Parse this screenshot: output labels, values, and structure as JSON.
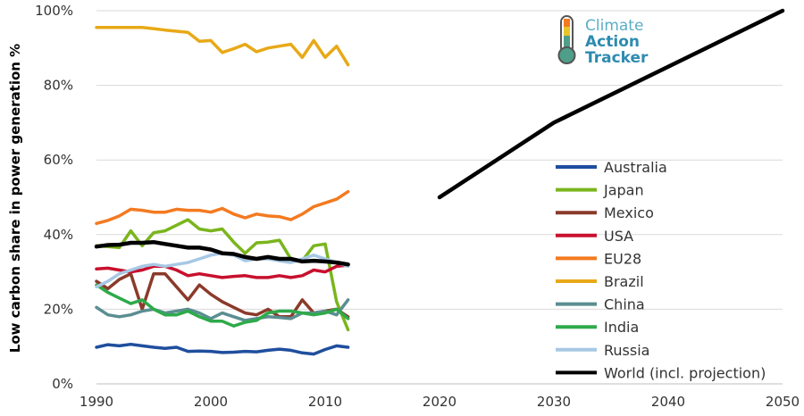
{
  "chart_data": {
    "type": "line",
    "title": "",
    "xlabel": "",
    "ylabel": "Low carbon share in power generation %",
    "xlim": [
      1990,
      2050
    ],
    "ylim": [
      0,
      100
    ],
    "x_ticks": [
      1990,
      2000,
      2010,
      2020,
      2030,
      2040,
      2050
    ],
    "x_tick_labels": [
      "1990",
      "2000",
      "2010",
      "2020",
      "2030",
      "2040",
      "2050"
    ],
    "y_ticks": [
      0,
      20,
      40,
      60,
      80,
      100
    ],
    "y_tick_labels": [
      "0%",
      "20%",
      "40%",
      "60%",
      "80%",
      "100%"
    ],
    "grid": "horizontal",
    "legend_position": "right",
    "logo": {
      "line1": "Climate",
      "line2": "Action",
      "line3": "Tracker"
    },
    "series": [
      {
        "name": "Australia",
        "color": "#1f4e9e",
        "x": [
          1990,
          1991,
          1992,
          1993,
          1994,
          1995,
          1996,
          1997,
          1998,
          1999,
          2000,
          2001,
          2002,
          2003,
          2004,
          2005,
          2006,
          2007,
          2008,
          2009,
          2010,
          2011,
          2012
        ],
        "y": [
          9.8,
          10.5,
          10.2,
          10.6,
          10.2,
          9.8,
          9.5,
          9.8,
          8.7,
          8.8,
          8.7,
          8.4,
          8.5,
          8.7,
          8.6,
          9.0,
          9.3,
          9.0,
          8.3,
          8.0,
          9.2,
          10.2,
          9.8
        ]
      },
      {
        "name": "Japan",
        "color": "#7ab51d",
        "x": [
          1990,
          1991,
          1992,
          1993,
          1994,
          1995,
          1996,
          1997,
          1998,
          1999,
          2000,
          2001,
          2002,
          2003,
          2004,
          2005,
          2006,
          2007,
          2008,
          2009,
          2010,
          2011,
          2012
        ],
        "y": [
          37.0,
          36.8,
          36.5,
          41.0,
          37.0,
          40.5,
          41.0,
          42.5,
          44.0,
          41.5,
          41.0,
          41.5,
          38.0,
          35.0,
          37.8,
          38.0,
          38.5,
          33.5,
          33.0,
          37.0,
          37.5,
          22.0,
          14.5
        ]
      },
      {
        "name": "Mexico",
        "color": "#8b3a2a",
        "x": [
          1990,
          1991,
          1992,
          1993,
          1994,
          1995,
          1996,
          1997,
          1998,
          1999,
          2000,
          2001,
          2002,
          2003,
          2004,
          2005,
          2006,
          2007,
          2008,
          2009,
          2010,
          2011,
          2012
        ],
        "y": [
          27.5,
          25.5,
          28.0,
          29.5,
          20.0,
          29.5,
          29.5,
          26.0,
          22.5,
          26.5,
          24.0,
          22.0,
          20.5,
          19.0,
          18.5,
          20.0,
          18.0,
          18.0,
          22.5,
          19.0,
          19.5,
          20.0,
          18.0
        ]
      },
      {
        "name": "USA",
        "color": "#c8102e",
        "x": [
          1990,
          1991,
          1992,
          1993,
          1994,
          1995,
          1996,
          1997,
          1998,
          1999,
          2000,
          2001,
          2002,
          2003,
          2004,
          2005,
          2006,
          2007,
          2008,
          2009,
          2010,
          2011,
          2012
        ],
        "y": [
          30.8,
          31.0,
          30.5,
          30.0,
          30.5,
          31.5,
          31.5,
          30.5,
          29.0,
          29.5,
          29.0,
          28.5,
          28.8,
          29.0,
          28.5,
          28.5,
          29.0,
          28.5,
          29.0,
          30.5,
          30.0,
          31.5,
          31.8
        ]
      },
      {
        "name": "EU28",
        "color": "#f47a20",
        "x": [
          1990,
          1991,
          1992,
          1993,
          1994,
          1995,
          1996,
          1997,
          1998,
          1999,
          2000,
          2001,
          2002,
          2003,
          2004,
          2005,
          2006,
          2007,
          2008,
          2009,
          2010,
          2011,
          2012
        ],
        "y": [
          43.0,
          43.8,
          45.0,
          46.8,
          46.5,
          46.0,
          46.0,
          46.8,
          46.5,
          46.5,
          46.0,
          47.0,
          45.5,
          44.5,
          45.5,
          45.0,
          44.8,
          44.0,
          45.5,
          47.5,
          48.5,
          49.5,
          51.5
        ]
      },
      {
        "name": "Brazil",
        "color": "#e8a917",
        "x": [
          1990,
          1991,
          1992,
          1993,
          1994,
          1995,
          1996,
          1997,
          1998,
          1999,
          2000,
          2001,
          2002,
          2003,
          2004,
          2005,
          2006,
          2007,
          2008,
          2009,
          2010,
          2011,
          2012
        ],
        "y": [
          95.5,
          95.5,
          95.5,
          95.5,
          95.5,
          95.2,
          94.8,
          94.5,
          94.2,
          91.8,
          92.0,
          88.8,
          89.8,
          91.0,
          89.0,
          90.0,
          90.5,
          91.0,
          87.5,
          92.0,
          87.5,
          90.5,
          85.5
        ]
      },
      {
        "name": "China",
        "color": "#5b8e91",
        "x": [
          1990,
          1991,
          1992,
          1993,
          1994,
          1995,
          1996,
          1997,
          1998,
          1999,
          2000,
          2001,
          2002,
          2003,
          2004,
          2005,
          2006,
          2007,
          2008,
          2009,
          2010,
          2011,
          2012
        ],
        "y": [
          20.5,
          18.5,
          18.0,
          18.5,
          19.5,
          20.0,
          19.0,
          19.5,
          20.0,
          19.0,
          17.5,
          19.0,
          18.0,
          17.0,
          17.5,
          18.0,
          17.8,
          17.5,
          19.0,
          19.0,
          19.5,
          18.5,
          22.5
        ]
      },
      {
        "name": "India",
        "color": "#2eaa4a",
        "x": [
          1990,
          1991,
          1992,
          1993,
          1994,
          1995,
          1996,
          1997,
          1998,
          1999,
          2000,
          2001,
          2002,
          2003,
          2004,
          2005,
          2006,
          2007,
          2008,
          2009,
          2010,
          2011,
          2012
        ],
        "y": [
          26.5,
          24.5,
          23.0,
          21.5,
          22.5,
          20.0,
          18.5,
          18.5,
          19.5,
          18.0,
          16.8,
          16.8,
          15.5,
          16.5,
          17.0,
          19.0,
          19.5,
          19.5,
          19.0,
          18.5,
          19.0,
          20.0,
          17.5
        ]
      },
      {
        "name": "Russia",
        "color": "#a7c8e4",
        "x": [
          1990,
          1991,
          1992,
          1993,
          1994,
          1995,
          1996,
          1997,
          1998,
          1999,
          2000,
          2001,
          2002,
          2003,
          2004,
          2005,
          2006,
          2007,
          2008,
          2009,
          2010,
          2011,
          2012
        ],
        "y": [
          26.0,
          27.5,
          29.5,
          30.5,
          31.5,
          32.0,
          31.5,
          32.0,
          32.5,
          33.5,
          34.5,
          35.0,
          34.5,
          33.0,
          33.5,
          33.5,
          33.0,
          32.5,
          33.5,
          34.5,
          33.5,
          32.5,
          31.5
        ]
      },
      {
        "name": "World (incl. projection)",
        "color": "#000000",
        "x": [
          1990,
          1991,
          1992,
          1993,
          1994,
          1995,
          1996,
          1997,
          1998,
          1999,
          2000,
          2001,
          2002,
          2003,
          2004,
          2005,
          2006,
          2007,
          2008,
          2009,
          2010,
          2011,
          2012
        ],
        "y": [
          36.8,
          37.2,
          37.3,
          37.8,
          37.8,
          38.0,
          37.5,
          37.0,
          36.5,
          36.5,
          36.0,
          35.0,
          34.8,
          34.0,
          33.5,
          34.0,
          33.5,
          33.5,
          32.8,
          33.0,
          32.8,
          32.5,
          32.0
        ],
        "projection": {
          "x": [
            2020,
            2030,
            2050
          ],
          "y": [
            50,
            70,
            100
          ]
        }
      }
    ]
  }
}
